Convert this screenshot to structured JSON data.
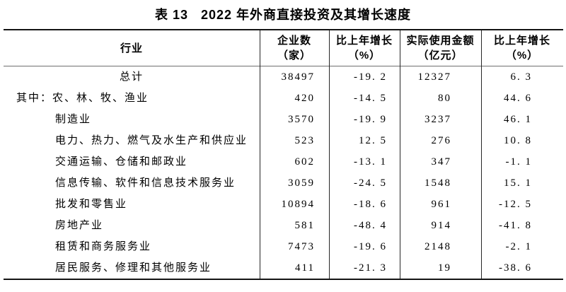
{
  "table": {
    "label": "表 13",
    "title": "2022 年外商直接投资及其增长速度",
    "columns": [
      {
        "line1": "行业",
        "line2": ""
      },
      {
        "line1": "企业数",
        "line2": "（家）"
      },
      {
        "line1": "比上年增长",
        "line2": "（%）"
      },
      {
        "line1": "实际使用金额",
        "line2": "（亿元）"
      },
      {
        "line1": "比上年增长",
        "line2": "（%）"
      }
    ],
    "rows": [
      {
        "style": "total",
        "industry": "总计",
        "enterprises": "38497",
        "growth1": "-19. 2",
        "amount": "12327",
        "growth2": "6. 3"
      },
      {
        "style": "prefix",
        "industry": "其中：农、林、牧、渔业",
        "enterprises": "420",
        "growth1": "-14. 5",
        "amount": "80",
        "growth2": "44. 6"
      },
      {
        "style": "indent",
        "industry": "制造业",
        "enterprises": "3570",
        "growth1": "-19. 9",
        "amount": "3237",
        "growth2": "46. 1"
      },
      {
        "style": "indent",
        "industry": "电力、热力、燃气及水生产和供应业",
        "enterprises": "523",
        "growth1": "12. 5",
        "amount": "276",
        "growth2": "10. 8"
      },
      {
        "style": "indent",
        "industry": "交通运输、仓储和邮政业",
        "enterprises": "602",
        "growth1": "-13. 1",
        "amount": "347",
        "growth2": "-1. 1"
      },
      {
        "style": "indent",
        "industry": "信息传输、软件和信息技术服务业",
        "enterprises": "3059",
        "growth1": "-24. 5",
        "amount": "1548",
        "growth2": "15. 1"
      },
      {
        "style": "indent",
        "industry": "批发和零售业",
        "enterprises": "10894",
        "growth1": "-18. 6",
        "amount": "961",
        "growth2": "-12. 5"
      },
      {
        "style": "indent",
        "industry": "房地产业",
        "enterprises": "581",
        "growth1": "-48. 4",
        "amount": "914",
        "growth2": "-41. 8"
      },
      {
        "style": "indent",
        "industry": "租赁和商务服务业",
        "enterprises": "7473",
        "growth1": "-19. 6",
        "amount": "2148",
        "growth2": "-2. 1"
      },
      {
        "style": "indent",
        "industry": "居民服务、修理和其他服务业",
        "enterprises": "411",
        "growth1": "-21. 3",
        "amount": "19",
        "growth2": "-38. 6"
      }
    ]
  }
}
